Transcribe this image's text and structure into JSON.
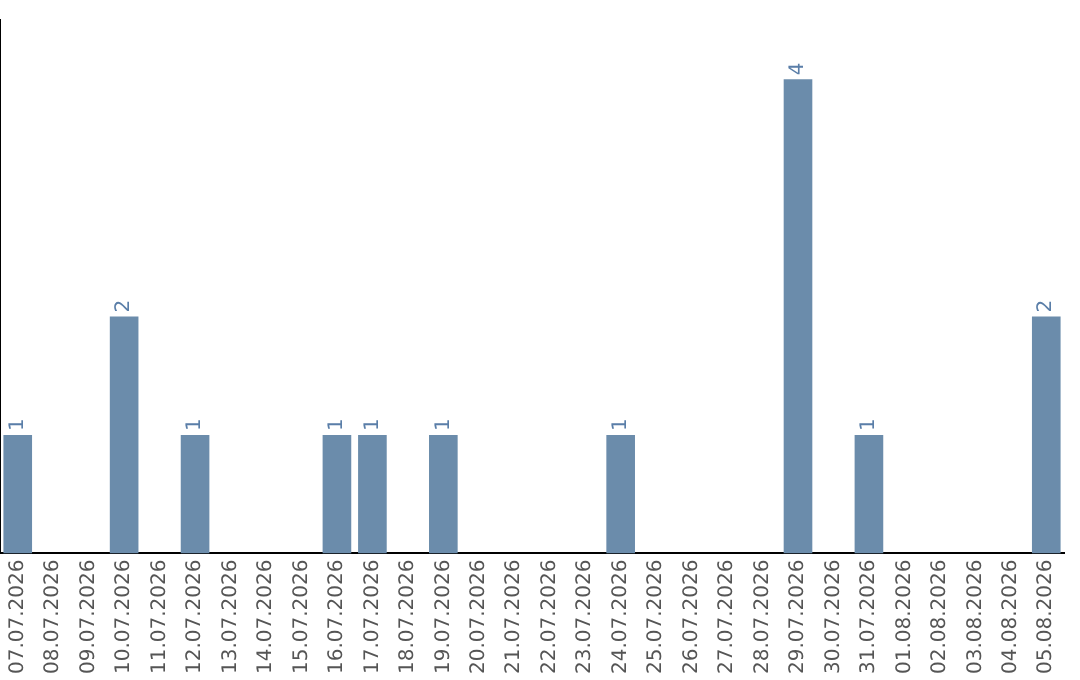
{
  "chart_data": {
    "type": "bar",
    "categories": [
      "07.07.2026",
      "08.07.2026",
      "09.07.2026",
      "10.07.2026",
      "11.07.2026",
      "12.07.2026",
      "13.07.2026",
      "14.07.2026",
      "15.07.2026",
      "16.07.2026",
      "17.07.2026",
      "18.07.2026",
      "19.07.2026",
      "20.07.2026",
      "21.07.2026",
      "22.07.2026",
      "23.07.2026",
      "24.07.2026",
      "25.07.2026",
      "26.07.2026",
      "27.07.2026",
      "28.07.2026",
      "29.07.2026",
      "30.07.2026",
      "31.07.2026",
      "01.08.2026",
      "02.08.2026",
      "03.08.2026",
      "04.08.2026",
      "05.08.2026"
    ],
    "values": [
      1,
      0,
      0,
      2,
      0,
      1,
      0,
      0,
      0,
      1,
      1,
      0,
      1,
      0,
      0,
      0,
      0,
      1,
      0,
      0,
      0,
      0,
      4,
      0,
      1,
      0,
      0,
      0,
      0,
      2
    ],
    "value_labels": [
      "1",
      null,
      null,
      "2",
      null,
      "1",
      null,
      null,
      null,
      "1",
      "1",
      null,
      "1",
      null,
      null,
      null,
      null,
      "1",
      null,
      null,
      null,
      null,
      "4",
      null,
      "1",
      null,
      null,
      null,
      null,
      "2"
    ],
    "color": "#6b8cab",
    "grid": false,
    "legend": false,
    "tick_labels": "x"
  }
}
